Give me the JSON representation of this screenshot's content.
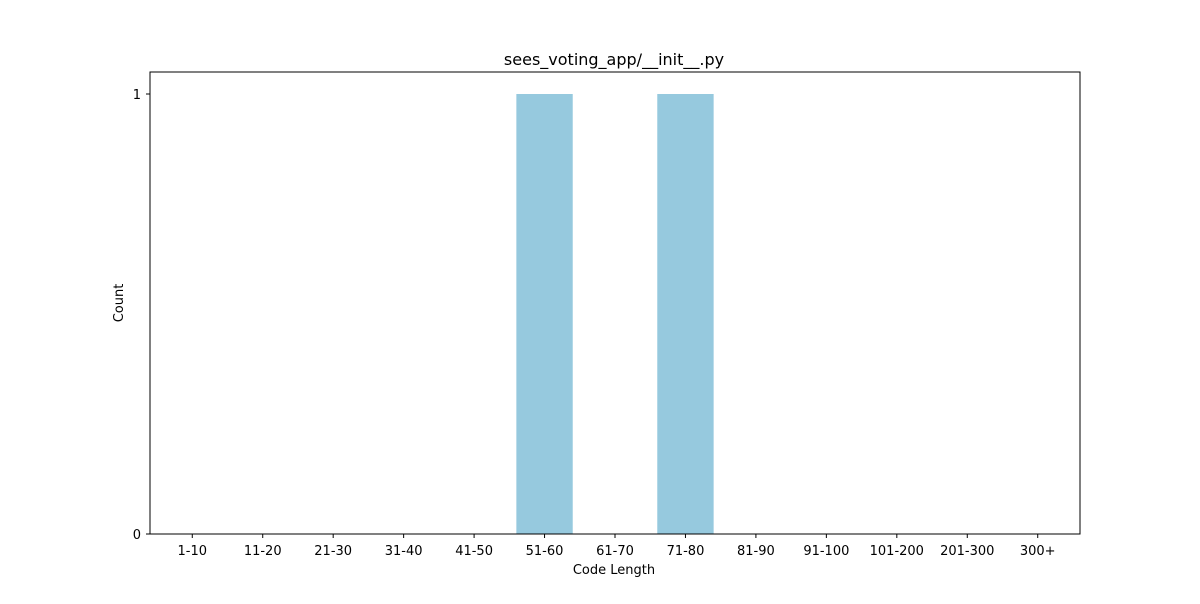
{
  "chart_data": {
    "type": "bar",
    "title": "sees_voting_app/__init__.py",
    "xlabel": "Code Length",
    "ylabel": "Count",
    "categories": [
      "1-10",
      "11-20",
      "21-30",
      "31-40",
      "41-50",
      "51-60",
      "61-70",
      "71-80",
      "81-90",
      "91-100",
      "101-200",
      "201-300",
      "300+"
    ],
    "values": [
      0,
      0,
      0,
      0,
      0,
      1,
      0,
      1,
      0,
      0,
      0,
      0,
      0
    ],
    "yticks": [
      "0",
      "1"
    ],
    "ylim": [
      0,
      1.05
    ],
    "grid": false,
    "bar_color": "#96c9de"
  }
}
